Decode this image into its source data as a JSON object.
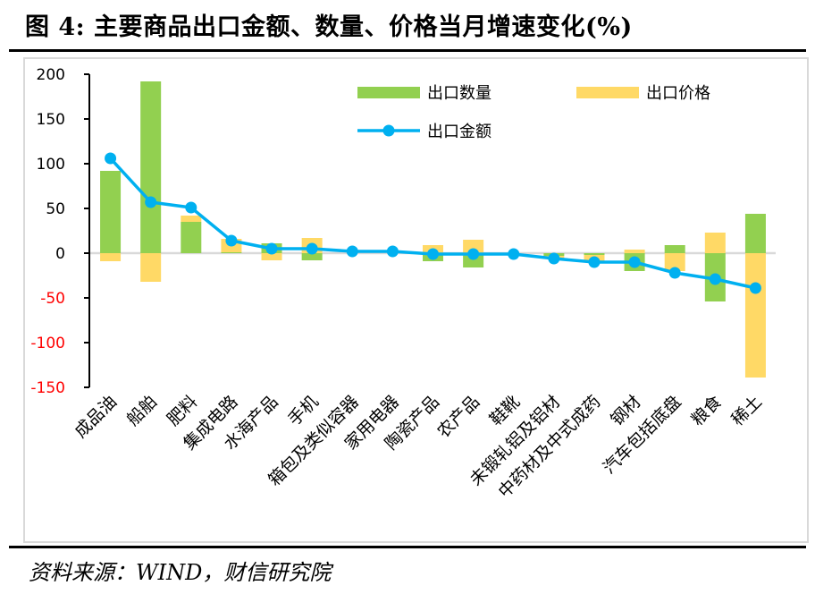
{
  "title": "图 4: 主要商品出口金额、数量、价格当月增速变化(%)",
  "source": "资料来源：WIND，财信研究院",
  "colors": {
    "quantity": "#92d050",
    "price": "#ffd966",
    "amount": "#00b0f0",
    "negative_tick": "#ff0000",
    "positive_tick": "#000000",
    "zero_line": "#d9d9d9"
  },
  "chart_data": {
    "type": "bar",
    "title": "主要商品出口金额、数量、价格当月增速变化(%)",
    "xlabel": "",
    "ylabel": "",
    "ylim": [
      -150,
      200
    ],
    "yticks": [
      200,
      150,
      100,
      50,
      0,
      -50,
      -100,
      -150
    ],
    "grid": false,
    "legend_position": "top-right",
    "categories": [
      "成品油",
      "船舶",
      "肥料",
      "集成电路",
      "水海产品",
      "手机",
      "箱包及类似容器",
      "家用电器",
      "陶瓷产品",
      "农产品",
      "鞋靴",
      "未锻轧铝及铝材",
      "中药材及中式成药",
      "钢材",
      "汽车包括底盘",
      "粮食",
      "稀土"
    ],
    "series": [
      {
        "name": "出口数量",
        "type": "bar",
        "values": [
          92,
          192,
          35,
          1,
          11,
          -8,
          0,
          0,
          -9,
          -16,
          0,
          -3,
          -2,
          -20,
          9,
          -54,
          44
        ]
      },
      {
        "name": "出口价格",
        "type": "bar",
        "values": [
          -9,
          -32,
          7,
          15,
          -8,
          17,
          0,
          0,
          9,
          15,
          0,
          -3,
          -7,
          4,
          -20,
          23,
          -139
        ]
      },
      {
        "name": "出口金额",
        "type": "line",
        "values": [
          106,
          57,
          51,
          14,
          5,
          5,
          2,
          2,
          -1,
          -1,
          -1,
          -6,
          -10,
          -10,
          -22,
          -29,
          -39
        ]
      }
    ]
  }
}
